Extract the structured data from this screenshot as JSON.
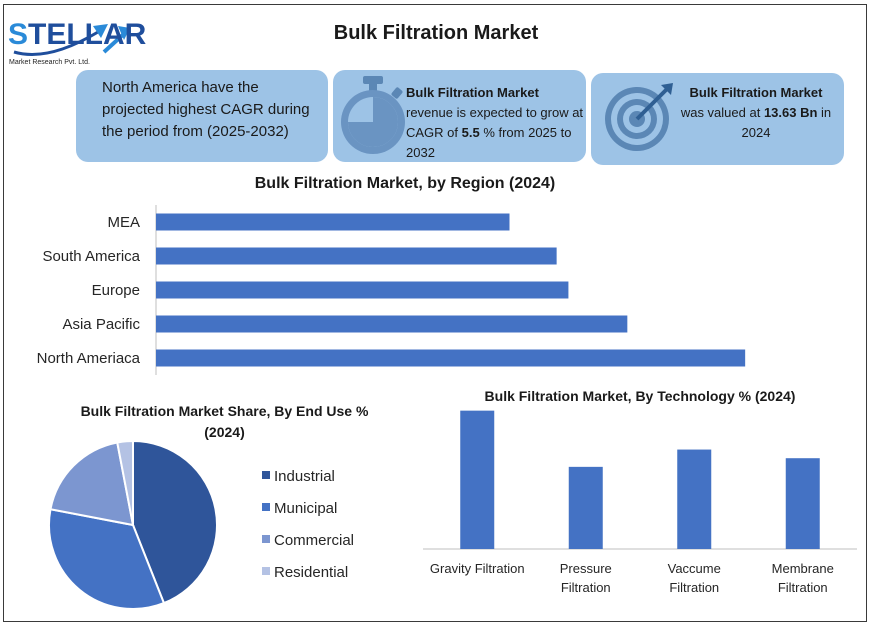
{
  "logo": {
    "brand": "STELLAR",
    "tagline": "Market Research Pvt. Ltd."
  },
  "page_title": "Bulk Filtration Market",
  "cards": {
    "card1": {
      "text": "North America have the projected highest CAGR during the period from (2025-2032)"
    },
    "card2": {
      "bold_title": "Bulk Filtration Market",
      "text_a": " revenue is expected to grow at CAGR of ",
      "cagr": "5.5",
      "text_b": " % from 2025 to 2032",
      "icon": "stopwatch-icon"
    },
    "card3": {
      "bold_title": "Bulk Filtration Market",
      "text_a": " was valued at ",
      "value": "13.63 Bn",
      "text_b": " in 2024",
      "icon": "target-icon"
    }
  },
  "colors": {
    "card_bg": "#9dc3e6",
    "bar": "#4472c4",
    "industrial": "#2f559a",
    "municipal": "#4472c4",
    "commercial": "#7c96d0",
    "residential": "#b4c2e4"
  },
  "chart_data": [
    {
      "type": "bar",
      "orientation": "horizontal",
      "title": "Bulk Filtration Market, by Region (2024)",
      "categories": [
        "MEA",
        "South America",
        "Europe",
        "Asia Pacific",
        "North Ameriaca"
      ],
      "values": [
        3.0,
        3.4,
        3.5,
        4.0,
        5.0
      ],
      "xlim": [
        0,
        6
      ],
      "grid": false
    },
    {
      "type": "pie",
      "title": "Bulk Filtration Market Share, By End Use % (2024)",
      "categories": [
        "Industrial",
        "Municipal",
        "Commercial",
        "Residential"
      ],
      "values": [
        44,
        34,
        19,
        3
      ],
      "legend": "right"
    },
    {
      "type": "bar",
      "title": "Bulk Filtration Market, By Technology % (2024)",
      "categories": [
        "Gravity Filtration",
        "Pressure Filtration",
        "Vaccume Filtration",
        "Membrane Filtration"
      ],
      "values": [
        32,
        19,
        23,
        21
      ],
      "ylim": [
        0,
        34
      ],
      "grid": false
    }
  ]
}
